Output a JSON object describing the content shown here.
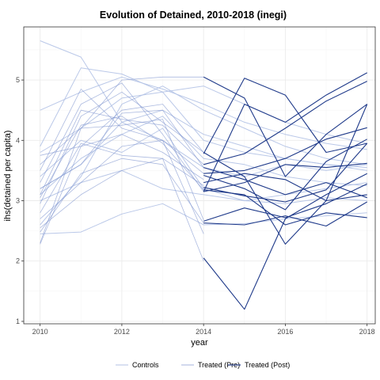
{
  "chart_data": {
    "type": "line",
    "title": "Evolution of Detained, 2010-2018 (inegi)",
    "xlabel": "year",
    "ylabel": "ihs(detained per capita)",
    "xlim": [
      2009.6,
      2018.2
    ],
    "ylim": [
      0.96,
      5.88
    ],
    "x_ticks": [
      2010,
      2012,
      2014,
      2016,
      2018
    ],
    "y_ticks": [
      1,
      2,
      3,
      4,
      5
    ],
    "grid": true,
    "legend_position": "bottom",
    "colors": {
      "controls": "#b3c2e6",
      "treated_pre": "#7f95cf",
      "treated_post": "#1f3a8a",
      "grid_major": "#ebebeb",
      "grid_minor": "#f5f5f5",
      "panel_border": "#333333"
    },
    "legend": [
      {
        "key": "controls",
        "label": "Controls"
      },
      {
        "key": "treated_pre",
        "label": "Treated (Pre)"
      },
      {
        "key": "treated_post",
        "label": "Treated (Post)"
      }
    ],
    "series": [
      {
        "group": "controls",
        "x": [
          2010,
          2011,
          2012,
          2013,
          2014,
          2015,
          2016,
          2017,
          2018
        ],
        "y": [
          5.65,
          5.38,
          4.3,
          4.0,
          3.55,
          3.4,
          3.6,
          3.5,
          3.6
        ]
      },
      {
        "group": "controls",
        "x": [
          2010,
          2011,
          2012,
          2013,
          2014,
          2015,
          2016,
          2017,
          2018
        ],
        "y": [
          4.5,
          4.8,
          5.05,
          4.85,
          4.6,
          4.3,
          4.1,
          3.95,
          3.85
        ]
      },
      {
        "group": "controls",
        "x": [
          2010,
          2011,
          2012,
          2013,
          2014,
          2015,
          2016,
          2017,
          2018
        ],
        "y": [
          3.9,
          5.2,
          5.1,
          4.8,
          4.0,
          3.8,
          3.7,
          3.6,
          3.55
        ]
      },
      {
        "group": "controls",
        "x": [
          2010,
          2011,
          2012,
          2013,
          2014,
          2015,
          2016,
          2017,
          2018
        ],
        "y": [
          2.45,
          2.48,
          2.78,
          2.95,
          2.6,
          2.62,
          2.7,
          2.75,
          2.8
        ]
      },
      {
        "group": "controls",
        "x": [
          2010,
          2011,
          2012,
          2013,
          2014,
          2015,
          2016,
          2017,
          2018
        ],
        "y": [
          3.2,
          3.6,
          4.3,
          4.5,
          4.1,
          3.9,
          3.7,
          3.6,
          3.5
        ]
      },
      {
        "group": "controls",
        "x": [
          2010,
          2011,
          2012,
          2013,
          2014,
          2015,
          2016,
          2017,
          2018
        ],
        "y": [
          3.0,
          3.3,
          3.5,
          3.2,
          3.1,
          3.0,
          2.95,
          3.05,
          3.0
        ]
      },
      {
        "group": "controls",
        "x": [
          2010,
          2011,
          2012,
          2013,
          2014,
          2015,
          2016,
          2017,
          2018
        ],
        "y": [
          2.6,
          3.4,
          4.6,
          4.9,
          4.5,
          4.2,
          3.9,
          3.7,
          3.6
        ]
      },
      {
        "group": "controls",
        "x": [
          2010,
          2011,
          2012,
          2013,
          2014,
          2015,
          2016,
          2017,
          2018
        ],
        "y": [
          3.4,
          4.0,
          3.8,
          4.2,
          3.2,
          3.0,
          3.1,
          3.2,
          3.3
        ]
      },
      {
        "group": "controls",
        "x": [
          2010,
          2011,
          2012,
          2013,
          2014,
          2015,
          2016,
          2017,
          2018
        ],
        "y": [
          3.8,
          4.2,
          4.7,
          4.8,
          4.9,
          4.6,
          4.3,
          4.1,
          3.95
        ]
      },
      {
        "group": "controls",
        "x": [
          2010,
          2011,
          2012,
          2013,
          2014,
          2015,
          2016,
          2017,
          2018
        ],
        "y": [
          3.1,
          3.7,
          4.1,
          4.4,
          3.7,
          3.6,
          3.4,
          3.3,
          3.25
        ]
      },
      {
        "group": "treated_pre",
        "x": [
          2010,
          2011,
          2012,
          2013,
          2014
        ],
        "y": [
          2.55,
          3.1,
          3.5,
          3.7,
          2.0
        ]
      },
      {
        "group": "treated_pre",
        "x": [
          2010,
          2011,
          2012,
          2013,
          2014
        ],
        "y": [
          2.28,
          3.9,
          4.5,
          4.6,
          3.8
        ]
      },
      {
        "group": "treated_pre",
        "x": [
          2010,
          2011,
          2012,
          2013,
          2014
        ],
        "y": [
          2.3,
          4.2,
          5.0,
          5.05,
          5.05
        ]
      },
      {
        "group": "treated_pre",
        "x": [
          2010,
          2011,
          2012,
          2013,
          2014
        ],
        "y": [
          2.7,
          3.3,
          3.9,
          4.0,
          2.45
        ]
      },
      {
        "group": "treated_pre",
        "x": [
          2010,
          2011,
          2012,
          2013,
          2014
        ],
        "y": [
          2.95,
          4.4,
          4.8,
          4.3,
          3.8
        ]
      },
      {
        "group": "treated_pre",
        "x": [
          2010,
          2011,
          2012,
          2013,
          2014
        ],
        "y": [
          3.1,
          4.5,
          4.35,
          4.25,
          3.6
        ]
      },
      {
        "group": "treated_pre",
        "x": [
          2010,
          2011,
          2012,
          2013,
          2014
        ],
        "y": [
          3.3,
          4.6,
          4.95,
          4.1,
          3.15
        ]
      },
      {
        "group": "treated_pre",
        "x": [
          2010,
          2011,
          2012,
          2013,
          2014
        ],
        "y": [
          3.5,
          4.85,
          4.2,
          4.0,
          3.45
        ]
      },
      {
        "group": "treated_pre",
        "x": [
          2010,
          2011,
          2012,
          2013,
          2014
        ],
        "y": [
          3.6,
          4.2,
          4.25,
          4.35,
          2.68
        ]
      },
      {
        "group": "treated_pre",
        "x": [
          2010,
          2011,
          2012,
          2013,
          2014
        ],
        "y": [
          3.75,
          3.9,
          4.1,
          3.8,
          3.35
        ]
      },
      {
        "group": "treated_pre",
        "x": [
          2010,
          2011,
          2012,
          2013,
          2014
        ],
        "y": [
          2.8,
          3.95,
          3.75,
          3.7,
          3.25
        ]
      },
      {
        "group": "treated_pre",
        "x": [
          2010,
          2011,
          2012,
          2013,
          2014
        ],
        "y": [
          3.2,
          3.6,
          4.45,
          4.5,
          3.55
        ]
      },
      {
        "group": "treated_pre",
        "x": [
          2010,
          2011,
          2012,
          2013,
          2014
        ],
        "y": [
          3.05,
          4.25,
          4.4,
          3.95,
          3.18
        ]
      },
      {
        "group": "treated_pre",
        "x": [
          2010,
          2011,
          2012,
          2013,
          2014
        ],
        "y": [
          2.48,
          3.45,
          3.7,
          3.6,
          2.63
        ]
      },
      {
        "group": "treated_post",
        "x": [
          2014,
          2015,
          2016,
          2017,
          2018
        ],
        "y": [
          2.05,
          1.2,
          2.7,
          3.1,
          3.45
        ]
      },
      {
        "group": "treated_post",
        "x": [
          2014,
          2015,
          2016,
          2017,
          2018
        ],
        "y": [
          5.05,
          4.7,
          3.4,
          4.1,
          4.6
        ]
      },
      {
        "group": "treated_post",
        "x": [
          2014,
          2015,
          2016,
          2017,
          2018
        ],
        "y": [
          3.78,
          5.03,
          4.75,
          3.8,
          3.95
        ]
      },
      {
        "group": "treated_post",
        "x": [
          2014,
          2015,
          2016,
          2017,
          2018
        ],
        "y": [
          3.8,
          3.4,
          2.28,
          3.0,
          4.6
        ]
      },
      {
        "group": "treated_post",
        "x": [
          2014,
          2015,
          2016,
          2017,
          2018
        ],
        "y": [
          3.15,
          4.6,
          4.3,
          4.75,
          5.12
        ]
      },
      {
        "group": "treated_post",
        "x": [
          2014,
          2015,
          2016,
          2017,
          2018
        ],
        "y": [
          3.6,
          3.78,
          4.2,
          4.65,
          4.98
        ]
      },
      {
        "group": "treated_post",
        "x": [
          2014,
          2015,
          2016,
          2017,
          2018
        ],
        "y": [
          3.45,
          3.5,
          3.7,
          4.02,
          4.21
        ]
      },
      {
        "group": "treated_post",
        "x": [
          2014,
          2015,
          2016,
          2017,
          2018
        ],
        "y": [
          3.22,
          3.08,
          2.98,
          3.18,
          3.95
        ]
      },
      {
        "group": "treated_post",
        "x": [
          2014,
          2015,
          2016,
          2017,
          2018
        ],
        "y": [
          3.42,
          3.2,
          2.85,
          3.65,
          4.02
        ]
      },
      {
        "group": "treated_post",
        "x": [
          2014,
          2015,
          2016,
          2017,
          2018
        ],
        "y": [
          3.15,
          3.3,
          3.6,
          3.55,
          3.62
        ]
      },
      {
        "group": "treated_post",
        "x": [
          2014,
          2015,
          2016,
          2017,
          2018
        ],
        "y": [
          3.55,
          3.35,
          3.1,
          3.3,
          3.05
        ]
      },
      {
        "group": "treated_post",
        "x": [
          2014,
          2015,
          2016,
          2017,
          2018
        ],
        "y": [
          2.66,
          2.88,
          2.72,
          2.95,
          3.28
        ]
      },
      {
        "group": "treated_post",
        "x": [
          2014,
          2015,
          2016,
          2017,
          2018
        ],
        "y": [
          3.3,
          3.45,
          3.35,
          3.0,
          3.1
        ]
      },
      {
        "group": "treated_post",
        "x": [
          2014,
          2015,
          2016,
          2017,
          2018
        ],
        "y": [
          2.63,
          2.6,
          2.75,
          2.58,
          2.98
        ]
      },
      {
        "group": "treated_post",
        "x": [
          2014,
          2015,
          2016,
          2017,
          2018
        ],
        "y": [
          3.18,
          3.1,
          2.6,
          2.8,
          2.72
        ]
      }
    ]
  }
}
